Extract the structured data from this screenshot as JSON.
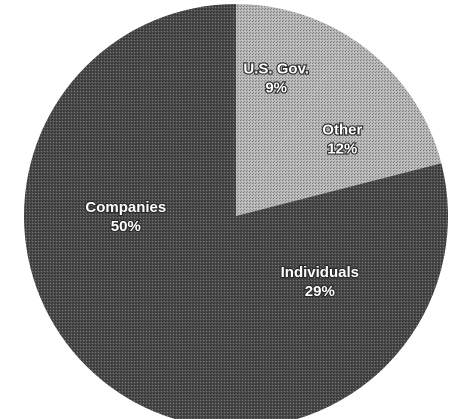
{
  "chart_data": {
    "type": "pie",
    "start": "top",
    "direction": "clockwise",
    "slices": [
      {
        "label": "U.S. Gov.",
        "value": 9,
        "value_label": "9%",
        "color": "#b8b8b8"
      },
      {
        "label": "Other",
        "value": 12,
        "value_label": "12%",
        "color": "#b8b8b8"
      },
      {
        "label": "Individuals",
        "value": 29,
        "value_label": "29%",
        "color": "#4a4a4a"
      },
      {
        "label": "Companies",
        "value": 50,
        "value_label": "50%",
        "color": "#4a4a4a"
      }
    ],
    "legend": "none"
  }
}
